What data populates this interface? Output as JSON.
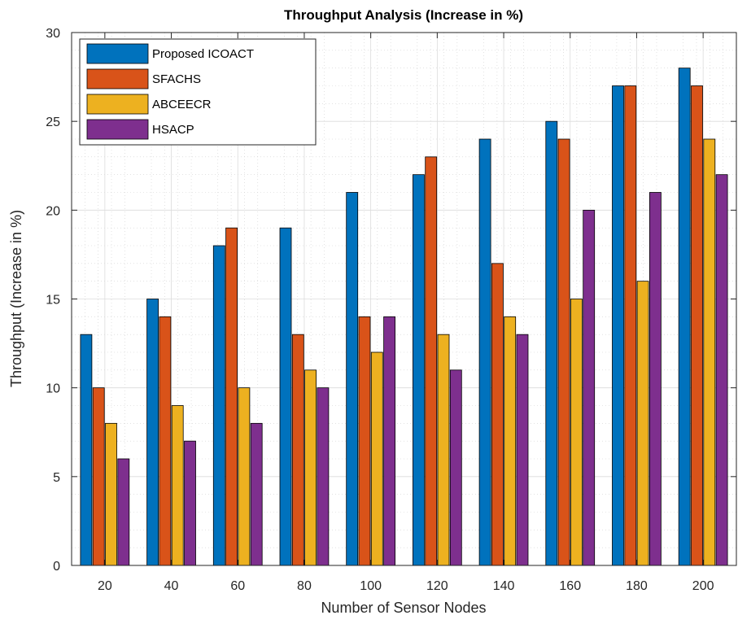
{
  "chart_data": {
    "type": "bar",
    "title": "Throughput Analysis (Increase in %)",
    "xlabel": "Number of Sensor Nodes",
    "ylabel": "Throughput (Increase in %)",
    "categories": [
      "20",
      "40",
      "60",
      "80",
      "100",
      "120",
      "140",
      "160",
      "180",
      "200"
    ],
    "ylim": [
      0,
      30
    ],
    "yticks": [
      0,
      5,
      10,
      15,
      20,
      25,
      30
    ],
    "grid": true,
    "minor_grid": true,
    "legend_position": "top-left",
    "series": [
      {
        "name": "Proposed ICOACT",
        "color": "#0072BD",
        "values": [
          13,
          15,
          18,
          19,
          21,
          22,
          24,
          25,
          27,
          28
        ]
      },
      {
        "name": "SFACHS",
        "color": "#D95319",
        "values": [
          10,
          14,
          19,
          13,
          14,
          23,
          17,
          24,
          27,
          27
        ]
      },
      {
        "name": "ABCEECR",
        "color": "#EDB120",
        "values": [
          8,
          9,
          10,
          11,
          12,
          13,
          14,
          15,
          16,
          24
        ]
      },
      {
        "name": "HSACP",
        "color": "#7E2F8E",
        "values": [
          6,
          7,
          8,
          10,
          14,
          11,
          13,
          20,
          21,
          22
        ]
      }
    ]
  }
}
